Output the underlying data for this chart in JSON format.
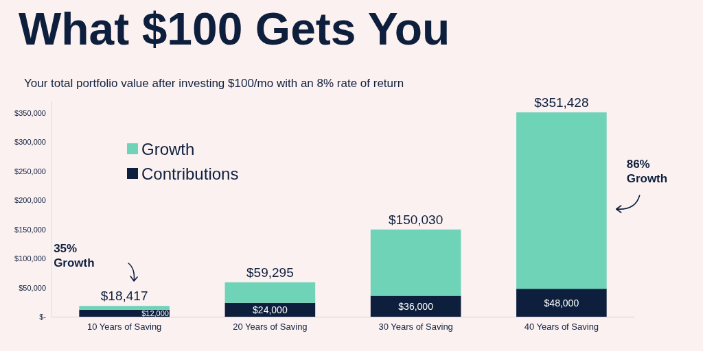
{
  "chart_data": {
    "type": "bar",
    "title": "What $100 Gets You",
    "subtitle": "Your total portfolio value after investing $100/mo with an 8% rate of return",
    "categories": [
      "10 Years of Saving",
      "20 Years of Saving",
      "30 Years of Saving",
      "40 Years of Saving"
    ],
    "stacked": true,
    "series": [
      {
        "name": "Contributions",
        "color": "#0e1f3d",
        "values": [
          12000,
          24000,
          36000,
          48000
        ],
        "value_labels": [
          "$12,000",
          "$24,000",
          "$36,000",
          "$48,000"
        ]
      },
      {
        "name": "Growth",
        "color": "#6fd3b8",
        "values": [
          6417,
          35295,
          114030,
          303428
        ]
      }
    ],
    "totals": [
      "$18,417",
      "$59,295",
      "$150,030",
      "$351,428"
    ],
    "ylim": [
      0,
      370000
    ],
    "yticks": [
      {
        "value": 0,
        "label": "$-"
      },
      {
        "value": 50000,
        "label": "$50,000"
      },
      {
        "value": 100000,
        "label": "$100,000"
      },
      {
        "value": 150000,
        "label": "$150,000"
      },
      {
        "value": 200000,
        "label": "$200,000"
      },
      {
        "value": 250000,
        "label": "$250,000"
      },
      {
        "value": 300000,
        "label": "$300,000"
      },
      {
        "value": 350000,
        "label": "$350,000"
      }
    ],
    "annotations": [
      "35% Growth",
      "86% Growth"
    ],
    "legend": "top left",
    "grid": false
  }
}
